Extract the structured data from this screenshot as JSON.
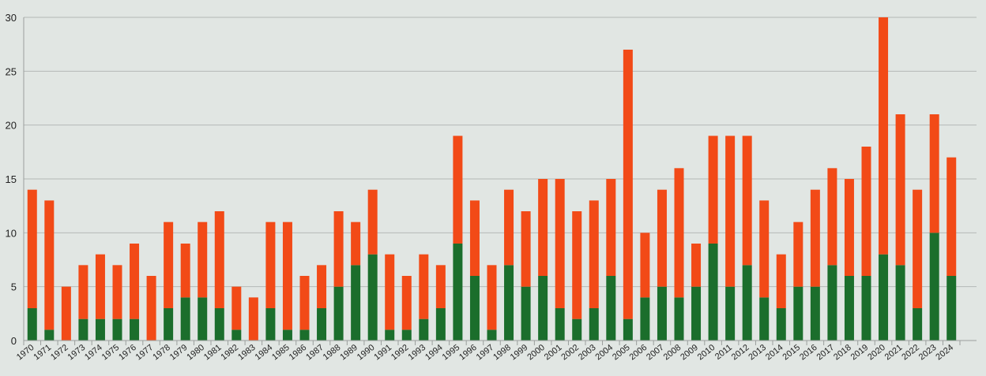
{
  "chart_data": {
    "type": "bar",
    "stacked": true,
    "categories": [
      "1970",
      "1971",
      "1972",
      "1973",
      "1974",
      "1975",
      "1976",
      "1977",
      "1978",
      "1979",
      "1980",
      "1981",
      "1982",
      "1983",
      "1984",
      "1985",
      "1986",
      "1987",
      "1988",
      "1989",
      "1990",
      "1991",
      "1992",
      "1993",
      "1994",
      "1995",
      "1996",
      "1997",
      "1998",
      "1999",
      "2000",
      "2001",
      "2002",
      "2003",
      "2004",
      "2005",
      "2006",
      "2007",
      "2008",
      "2009",
      "2010",
      "2011",
      "2012",
      "2013",
      "2014",
      "2015",
      "2016",
      "2017",
      "2018",
      "2019",
      "2020",
      "2021",
      "2022",
      "2023",
      "2024"
    ],
    "series": [
      {
        "color": "#1b6e2c",
        "values": [
          3,
          1,
          0,
          2,
          2,
          2,
          2,
          0,
          3,
          4,
          4,
          3,
          1,
          0,
          3,
          1,
          1,
          3,
          5,
          7,
          8,
          1,
          1,
          2,
          3,
          9,
          6,
          1,
          7,
          5,
          6,
          3,
          2,
          3,
          6,
          2,
          4,
          5,
          4,
          5,
          9,
          5,
          7,
          4,
          3,
          5,
          5,
          7,
          6,
          6,
          8,
          7,
          3,
          10,
          6
        ]
      },
      {
        "color": "#f24a17",
        "values": [
          11,
          12,
          5,
          5,
          6,
          5,
          7,
          6,
          8,
          5,
          7,
          9,
          4,
          4,
          8,
          10,
          5,
          4,
          7,
          4,
          6,
          7,
          5,
          6,
          4,
          10,
          7,
          6,
          7,
          7,
          9,
          12,
          10,
          10,
          9,
          25,
          6,
          9,
          12,
          4,
          10,
          14,
          12,
          9,
          5,
          6,
          9,
          9,
          9,
          12,
          22,
          14,
          11,
          11,
          11
        ]
      }
    ],
    "ylim": [
      0,
      30
    ],
    "yticks": [
      "0",
      "5",
      "10",
      "15",
      "20",
      "25",
      "30"
    ],
    "grid": true,
    "background": "#e1e6e3",
    "gridcolor": "#b4b8b6"
  }
}
